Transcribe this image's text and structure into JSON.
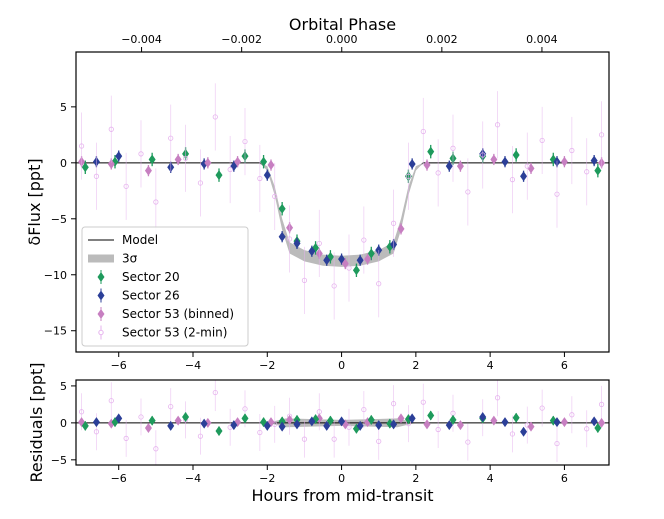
{
  "chart_data": [
    {
      "type": "scatter",
      "x2label": "Orbital Phase",
      "ylabel": "δFlux [ppt]",
      "xlim": [
        -7.15,
        7.2
      ],
      "ylim": [
        -16.9,
        9.9
      ],
      "x2lim": [
        -0.00531,
        0.00534
      ],
      "xticks": [
        {
          "value": -6,
          "label": "−6"
        },
        {
          "value": -4,
          "label": "−4"
        },
        {
          "value": -2,
          "label": "−2"
        },
        0,
        2,
        4,
        6
      ],
      "yticks": [
        {
          "value": -15,
          "label": "−15"
        },
        {
          "value": -10,
          "label": "−10"
        },
        {
          "value": -5,
          "label": "−5"
        },
        0,
        5
      ],
      "x2ticks": [
        {
          "value": -0.004,
          "label": "−0.004"
        },
        {
          "value": -0.002,
          "label": "−0.002"
        },
        {
          "value": 0,
          "label": "0.000"
        },
        0.002,
        0.004
      ],
      "legend": "lower left",
      "series": [
        {
          "name": "Model",
          "kind": "line",
          "color": "#000000",
          "x": [
            -7.15,
            -2.2,
            -2.0,
            -1.8,
            -1.6,
            -1.4,
            -1.0,
            -0.5,
            0,
            0.5,
            1.0,
            1.4,
            1.6,
            1.8,
            2.0,
            2.2,
            7.2
          ],
          "values": [
            0,
            0,
            -0.5,
            -2.5,
            -5.5,
            -7.6,
            -8.3,
            -8.7,
            -8.8,
            -8.7,
            -8.3,
            -7.6,
            -5.5,
            -2.5,
            -0.5,
            0,
            0
          ]
        },
        {
          "name": "3σ",
          "kind": "band",
          "color": "#bbbbbb",
          "x": [
            -7.15,
            -2.2,
            -2.0,
            -1.8,
            -1.6,
            -1.4,
            -1.0,
            -0.5,
            0,
            0.5,
            1.0,
            1.4,
            1.6,
            1.8,
            2.0,
            2.2,
            7.2
          ],
          "low": [
            0,
            0,
            -0.7,
            -2.9,
            -6.0,
            -8.1,
            -8.8,
            -9.2,
            -9.3,
            -9.2,
            -8.8,
            -8.1,
            -6.0,
            -2.9,
            -0.7,
            0,
            0
          ],
          "high": [
            0,
            0,
            -0.3,
            -2.1,
            -5.0,
            -7.1,
            -7.8,
            -8.2,
            -8.3,
            -8.2,
            -7.8,
            -7.1,
            -5.0,
            -2.1,
            -0.3,
            0,
            0
          ]
        },
        {
          "name": "Sector 20",
          "kind": "points",
          "marker": "diamond",
          "color": "#1e9a5c",
          "x": [
            -6.9,
            -6.1,
            -5.1,
            -4.2,
            -3.3,
            -2.6,
            -2.1,
            -1.6,
            -1.2,
            -0.7,
            -0.3,
            0.4,
            0.8,
            1.3,
            1.8,
            2.4,
            3.0,
            3.8,
            4.7,
            5.7,
            6.9
          ],
          "values": [
            -0.4,
            0.1,
            0.3,
            0.8,
            -1.1,
            0.6,
            0.1,
            -4.1,
            -7.0,
            -7.6,
            -8.4,
            -9.6,
            -8.1,
            -7.5,
            -1.2,
            1.0,
            0.4,
            0.6,
            0.7,
            0.3,
            -0.7
          ],
          "errors": [
            0.6,
            0.6,
            0.6,
            0.6,
            0.6,
            0.6,
            0.6,
            0.6,
            0.6,
            0.6,
            0.6,
            0.6,
            0.6,
            0.6,
            0.6,
            0.6,
            0.6,
            0.6,
            0.6,
            0.6,
            0.6
          ]
        },
        {
          "name": "Sector 26",
          "kind": "points",
          "marker": "diamond",
          "color": "#2b3f98",
          "x": [
            -6.6,
            -6.0,
            -4.6,
            -3.7,
            -2.9,
            -2.0,
            -1.6,
            -1.2,
            -0.8,
            -0.4,
            0,
            0.5,
            1.0,
            1.4,
            1.9,
            2.9,
            3.8,
            4.4,
            4.9,
            5.8,
            6.8
          ],
          "values": [
            0.1,
            0.6,
            -0.4,
            -0.1,
            -0.3,
            -1.1,
            -6.6,
            -7.2,
            -7.9,
            -8.7,
            -8.6,
            -8.7,
            -7.8,
            -7.3,
            -0.1,
            -0.3,
            0.8,
            0.1,
            -1.2,
            0.1,
            0.2
          ],
          "errors": [
            0.5,
            0.5,
            0.5,
            0.5,
            0.5,
            0.5,
            0.5,
            0.5,
            0.5,
            0.5,
            0.5,
            0.5,
            0.5,
            0.5,
            0.5,
            0.5,
            0.5,
            0.5,
            0.5,
            0.5,
            0.5
          ]
        },
        {
          "name": "Sector 53 (binned)",
          "kind": "points",
          "marker": "diamond",
          "color": "#c77fc1",
          "x": [
            -7.0,
            -6.2,
            -5.2,
            -4.4,
            -3.6,
            -2.8,
            -1.9,
            -1.4,
            -0.6,
            0.1,
            0.7,
            1.6,
            2.3,
            3.2,
            4.1,
            5.1,
            6.0,
            7.0
          ],
          "values": [
            0.1,
            -0.1,
            -0.7,
            0.3,
            0.0,
            0.1,
            -0.2,
            -5.8,
            -8.1,
            -9.0,
            -8.6,
            -5.9,
            -0.2,
            -0.3,
            0.3,
            -0.5,
            0.1,
            0.0
          ],
          "errors": [
            0.5,
            0.5,
            0.5,
            0.5,
            0.5,
            0.5,
            0.5,
            0.5,
            0.5,
            0.5,
            0.5,
            0.5,
            0.5,
            0.5,
            0.5,
            0.5,
            0.5,
            0.5
          ]
        },
        {
          "name": "Sector 53 (2-min)",
          "kind": "points",
          "marker": "open-circle",
          "color": "#e6b3ee",
          "x": [
            -7.0,
            -6.6,
            -6.2,
            -5.8,
            -5.4,
            -5.0,
            -4.6,
            -4.2,
            -3.8,
            -3.4,
            -3.0,
            -2.6,
            -2.2,
            -1.8,
            -1.4,
            -1.0,
            -0.6,
            -0.2,
            0.2,
            0.6,
            1.0,
            1.4,
            1.8,
            2.2,
            2.6,
            3.0,
            3.4,
            3.8,
            4.2,
            4.6,
            5.0,
            5.4,
            5.8,
            6.2,
            6.6,
            7.0
          ],
          "values": [
            1.5,
            -1.2,
            3.0,
            -2.1,
            0.8,
            -3.5,
            2.2,
            0.4,
            -1.8,
            4.1,
            -0.6,
            1.9,
            -1.4,
            -3.0,
            -6.8,
            -10.5,
            -7.2,
            -11.0,
            -9.4,
            -6.9,
            -10.8,
            -5.4,
            -1.2,
            2.8,
            -0.9,
            1.3,
            -2.6,
            0.7,
            3.4,
            -1.5,
            -0.3,
            2.0,
            -2.8,
            1.1,
            -0.8,
            2.5
          ],
          "errors": [
            3,
            3,
            3,
            3,
            3,
            3,
            3,
            3,
            3,
            3,
            3,
            3,
            3,
            3,
            3,
            3,
            3,
            3,
            3,
            3,
            3,
            3,
            3,
            3,
            3,
            3,
            3,
            3,
            3,
            3,
            3,
            3,
            3,
            3,
            3,
            3
          ]
        }
      ]
    },
    {
      "type": "scatter",
      "xlabel": "Hours from mid-transit",
      "ylabel": "Residuals [ppt]",
      "xlim": [
        -7.15,
        7.2
      ],
      "ylim": [
        -5.7,
        5.8
      ],
      "xticks": [
        {
          "value": -6,
          "label": "−6"
        },
        {
          "value": -4,
          "label": "−4"
        },
        {
          "value": -2,
          "label": "−2"
        },
        0,
        2,
        4,
        6
      ],
      "yticks": [
        {
          "value": -5,
          "label": "−5"
        },
        0,
        5
      ],
      "series": [
        {
          "kind": "band",
          "color": "#bbbbbb",
          "x": [
            -7.15,
            -2,
            -1.5,
            0,
            1.5,
            2,
            7.2
          ],
          "low": [
            0,
            0,
            -0.6,
            -0.4,
            -0.6,
            0,
            0
          ],
          "high": [
            0,
            0,
            0.6,
            0.4,
            0.6,
            0,
            0
          ]
        },
        {
          "kind": "line",
          "color": "#000000",
          "x": [
            -7.15,
            7.2
          ],
          "values": [
            0,
            0
          ]
        },
        {
          "kind": "points",
          "marker": "open-circle",
          "color": "#e6b3ee",
          "x": [
            -7.0,
            -6.6,
            -6.2,
            -5.8,
            -5.4,
            -5.0,
            -4.6,
            -4.2,
            -3.8,
            -3.4,
            -3.0,
            -2.6,
            -2.2,
            -1.8,
            -1.4,
            -1.0,
            -0.6,
            -0.2,
            0.2,
            0.6,
            1.0,
            1.4,
            1.8,
            2.2,
            2.6,
            3.0,
            3.4,
            3.8,
            4.2,
            4.6,
            5.0,
            5.4,
            5.8,
            6.2,
            6.6,
            7.0
          ],
          "values": [
            1.5,
            -1.2,
            3.0,
            -2.1,
            0.8,
            -3.5,
            2.2,
            0.4,
            -1.8,
            4.1,
            -0.6,
            1.9,
            -1.3,
            -0.2,
            0.9,
            -2.2,
            1.5,
            -2.2,
            -0.6,
            1.8,
            -2.5,
            2.6,
            -0.1,
            2.8,
            -0.9,
            1.3,
            -2.6,
            0.7,
            3.4,
            -1.5,
            -0.3,
            2.0,
            -2.8,
            1.1,
            -0.8,
            2.5
          ],
          "errors": [
            2.5,
            2.5,
            2.5,
            2.5,
            2.5,
            2.5,
            2.5,
            2.5,
            2.5,
            2.5,
            2.5,
            2.5,
            2.5,
            2.5,
            2.5,
            2.5,
            2.5,
            2.5,
            2.5,
            2.5,
            2.5,
            2.5,
            2.5,
            2.5,
            2.5,
            2.5,
            2.5,
            2.5,
            2.5,
            2.5,
            2.5,
            2.5,
            2.5,
            2.5,
            2.5,
            2.5
          ]
        },
        {
          "kind": "points",
          "marker": "diamond",
          "color": "#c77fc1",
          "x": [
            -7.0,
            -6.2,
            -5.2,
            -4.4,
            -3.6,
            -2.8,
            -1.9,
            -1.4,
            -0.6,
            0.1,
            0.7,
            1.6,
            2.3,
            3.2,
            4.1,
            5.1,
            6.0,
            7.0
          ],
          "values": [
            0.1,
            -0.1,
            -0.7,
            0.3,
            0.0,
            0.1,
            0.1,
            0.4,
            0.6,
            -0.2,
            0.1,
            0.6,
            -0.2,
            -0.3,
            0.3,
            -0.5,
            0.1,
            0.0
          ],
          "errors": [
            0.5,
            0.5,
            0.5,
            0.5,
            0.5,
            0.5,
            0.5,
            0.5,
            0.5,
            0.5,
            0.5,
            0.5,
            0.5,
            0.5,
            0.5,
            0.5,
            0.5,
            0.5
          ]
        },
        {
          "kind": "points",
          "marker": "diamond",
          "color": "#1e9a5c",
          "x": [
            -6.9,
            -6.1,
            -5.1,
            -4.2,
            -3.3,
            -2.6,
            -2.1,
            -1.6,
            -1.2,
            -0.7,
            -0.3,
            0.4,
            0.8,
            1.3,
            1.8,
            2.4,
            3.0,
            3.8,
            4.7,
            5.7,
            6.9
          ],
          "values": [
            -0.4,
            0.1,
            0.3,
            0.8,
            -1.1,
            0.6,
            0.1,
            0.2,
            0.4,
            0.5,
            0.3,
            -0.8,
            0.4,
            -0.1,
            0.5,
            1.0,
            0.4,
            0.6,
            0.7,
            0.3,
            -0.7
          ],
          "errors": [
            0.6,
            0.6,
            0.6,
            0.6,
            0.6,
            0.6,
            0.6,
            0.6,
            0.6,
            0.6,
            0.6,
            0.6,
            0.6,
            0.6,
            0.6,
            0.6,
            0.6,
            0.6,
            0.6,
            0.6,
            0.6
          ]
        },
        {
          "kind": "points",
          "marker": "diamond",
          "color": "#2b3f98",
          "x": [
            -6.6,
            -6.0,
            -4.6,
            -3.7,
            -2.9,
            -2.0,
            -1.6,
            -1.2,
            -0.8,
            -0.4,
            0,
            0.5,
            1.0,
            1.4,
            1.9,
            2.9,
            3.8,
            4.4,
            4.9,
            5.8,
            6.8
          ],
          "values": [
            0.1,
            0.6,
            -0.4,
            -0.1,
            -0.3,
            -0.4,
            -0.5,
            -0.2,
            0.2,
            -0.4,
            0.2,
            -0.4,
            -0.3,
            -0.2,
            0.6,
            -0.3,
            0.8,
            0.1,
            -1.2,
            0.1,
            0.2
          ],
          "errors": [
            0.5,
            0.5,
            0.5,
            0.5,
            0.5,
            0.5,
            0.5,
            0.5,
            0.5,
            0.5,
            0.5,
            0.5,
            0.5,
            0.5,
            0.5,
            0.5,
            0.5,
            0.5,
            0.5,
            0.5,
            0.5
          ]
        }
      ]
    }
  ]
}
